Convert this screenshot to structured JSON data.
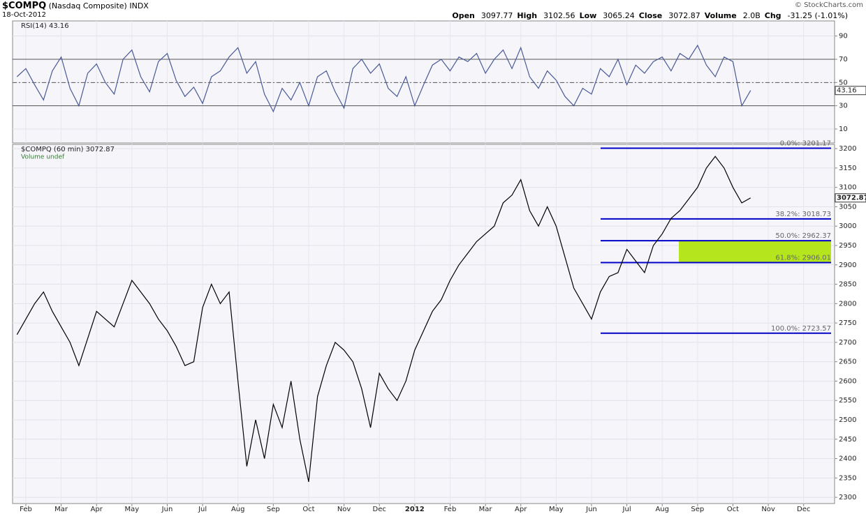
{
  "header": {
    "symbol": "$COMPQ",
    "name": "(Nasdaq Composite)",
    "exchange": "INDX",
    "date": "18-Oct-2012",
    "stats": [
      {
        "label": "Open",
        "value": "3097.77"
      },
      {
        "label": "High",
        "value": "3102.56"
      },
      {
        "label": "Low",
        "value": "3065.24"
      },
      {
        "label": "Close",
        "value": "3072.87"
      },
      {
        "label": "Volume",
        "value": "2.0B"
      },
      {
        "label": "Chg",
        "value": "-31.25 (-1.01%)"
      }
    ],
    "copyright": "© StockCharts.com"
  },
  "chart_data": [
    {
      "type": "line",
      "title": "RSI(14) 43.16",
      "color": "#4a5a96",
      "ylim": [
        -2,
        103
      ],
      "yticks": [
        10,
        30,
        50,
        70,
        90
      ],
      "levels": [
        30,
        50,
        70
      ],
      "grid": true,
      "values": [
        55,
        62,
        48,
        35,
        60,
        72,
        45,
        30,
        58,
        66,
        50,
        40,
        70,
        78,
        55,
        42,
        68,
        75,
        52,
        38,
        46,
        32,
        55,
        60,
        72,
        80,
        58,
        68,
        40,
        25,
        45,
        35,
        50,
        30,
        55,
        60,
        42,
        28,
        62,
        70,
        58,
        66,
        45,
        38,
        55,
        30,
        48,
        65,
        70,
        60,
        72,
        68,
        75,
        58,
        70,
        78,
        62,
        80,
        55,
        45,
        60,
        52,
        38,
        30,
        45,
        40,
        62,
        55,
        70,
        48,
        65,
        58,
        68,
        72,
        60,
        75,
        70,
        82,
        65,
        55,
        72,
        68,
        30,
        43.16,
        null,
        null,
        null,
        null,
        null,
        null,
        null,
        null,
        null
      ]
    },
    {
      "type": "line",
      "title": "$COMPQ (60 min) 3072.87",
      "subtitle": "Volume undef",
      "color": "#000000",
      "ylim": [
        2284,
        3211
      ],
      "yticks": [
        2300,
        2350,
        2400,
        2450,
        2500,
        2550,
        2600,
        2650,
        2700,
        2750,
        2800,
        2850,
        2900,
        2950,
        3000,
        3050,
        3100,
        3150,
        3200
      ],
      "grid": true,
      "categories": [
        null,
        "Feb",
        null,
        null,
        null,
        "Mar",
        null,
        null,
        null,
        "Apr",
        null,
        null,
        null,
        "May",
        null,
        null,
        null,
        "Jun",
        null,
        null,
        null,
        "Jul",
        null,
        null,
        null,
        "Aug",
        null,
        null,
        null,
        "Sep",
        null,
        null,
        null,
        "Oct",
        null,
        null,
        null,
        "Nov",
        null,
        null,
        null,
        "Dec",
        null,
        null,
        null,
        "2012",
        null,
        null,
        null,
        "Feb",
        null,
        null,
        null,
        "Mar",
        null,
        null,
        null,
        "Apr",
        null,
        null,
        null,
        "May",
        null,
        null,
        null,
        "Jun",
        null,
        null,
        null,
        "Jul",
        null,
        null,
        null,
        "Aug",
        null,
        null,
        null,
        "Sep",
        null,
        null,
        null,
        "Oct",
        null,
        null,
        null,
        "Nov",
        null,
        null,
        null,
        "Dec",
        null,
        null,
        null
      ],
      "values": [
        2720,
        2760,
        2800,
        2830,
        2780,
        2740,
        2700,
        2640,
        2710,
        2780,
        2760,
        2740,
        2800,
        2860,
        2830,
        2800,
        2760,
        2730,
        2690,
        2640,
        2650,
        2790,
        2850,
        2800,
        2830,
        2600,
        2380,
        2500,
        2400,
        2540,
        2480,
        2600,
        2450,
        2340,
        2560,
        2640,
        2700,
        2680,
        2650,
        2580,
        2480,
        2620,
        2580,
        2550,
        2600,
        2680,
        2730,
        2780,
        2810,
        2860,
        2900,
        2930,
        2960,
        2980,
        3000,
        3060,
        3080,
        3120,
        3040,
        3000,
        3050,
        3000,
        2920,
        2840,
        2800,
        2760,
        2830,
        2870,
        2880,
        2940,
        2910,
        2880,
        2950,
        2980,
        3020,
        3040,
        3070,
        3100,
        3150,
        3180,
        3150,
        3100,
        3060,
        3072.87,
        null,
        null,
        null,
        null,
        null,
        null,
        null,
        null,
        null
      ],
      "fibonacci": [
        {
          "value": 3201.17,
          "label": "0.0%: 3201.17"
        },
        {
          "value": 3018.73,
          "label": "38.2%: 3018.73"
        },
        {
          "value": 2962.37,
          "label": "50.0%: 2962.37"
        },
        {
          "value": 2906.01,
          "label": "61.8%: 2906.01"
        },
        {
          "value": 2723.57,
          "label": "100.0%: 2723.57"
        }
      ],
      "fib_color": "#0000c8",
      "zone_color": "#b5e61d"
    }
  ]
}
